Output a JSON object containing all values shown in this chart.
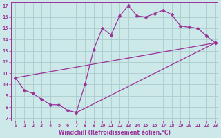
{
  "xlabel": "Windchill (Refroidissement éolien,°C)",
  "bg_color": "#cce8e8",
  "grid_color": "#aacccc",
  "line_color": "#993399",
  "xlim": [
    -0.5,
    23.3
  ],
  "ylim": [
    6.8,
    17.3
  ],
  "xticks": [
    0,
    1,
    2,
    3,
    4,
    5,
    6,
    7,
    8,
    9,
    10,
    11,
    12,
    13,
    14,
    15,
    16,
    17,
    18,
    19,
    20,
    21,
    22,
    23
  ],
  "yticks": [
    7,
    8,
    9,
    10,
    11,
    12,
    13,
    14,
    15,
    16,
    17
  ],
  "line1_x": [
    0,
    1,
    2,
    3,
    4,
    5,
    6,
    7,
    8,
    9,
    10,
    11,
    12,
    13,
    14,
    15,
    16,
    17,
    18,
    19,
    20,
    21,
    22,
    23
  ],
  "line1_y": [
    10.6,
    9.5,
    9.2,
    8.7,
    8.2,
    8.2,
    7.7,
    7.5,
    10.0,
    13.1,
    15.0,
    14.4,
    16.1,
    17.0,
    16.1,
    16.0,
    16.3,
    16.6,
    16.2,
    15.2,
    15.1,
    15.0,
    14.3,
    13.7
  ],
  "line2_x": [
    0,
    23
  ],
  "line2_y": [
    10.6,
    13.7
  ],
  "line3_x": [
    7,
    23
  ],
  "line3_y": [
    7.5,
    13.7
  ],
  "markersize": 2.5,
  "linewidth": 0.9,
  "tick_labelsize": 5,
  "xlabel_fontsize": 5.5
}
